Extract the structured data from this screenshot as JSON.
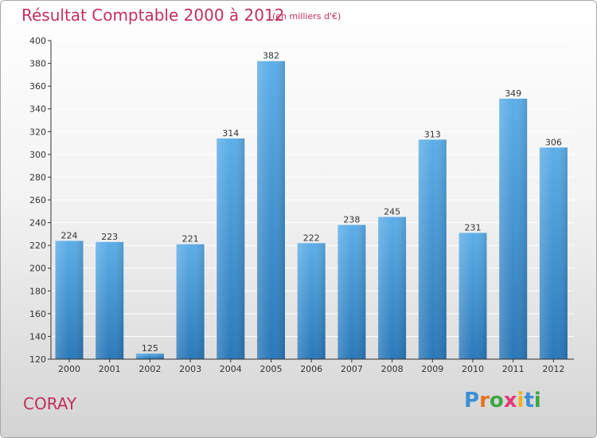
{
  "header": {
    "title": "Résultat Comptable 2000 à 2012",
    "subtitle": "(en milliers d'€)"
  },
  "footer": {
    "commune": "CORAY",
    "logo_letters": [
      "P",
      "r",
      "o",
      "x",
      "i",
      "t",
      "i"
    ],
    "logo_colors": [
      "#3b8fd6",
      "#e8731e",
      "#3aa845",
      "#e23b7a",
      "#f0b21c",
      "#3b8fd6",
      "#3aa845"
    ]
  },
  "colors": {
    "bar_top": "#5daee8",
    "bar_bottom": "#2a78b8",
    "title": "#c0305a",
    "grid": "#ffffff",
    "axis": "#333333"
  },
  "chart_data": {
    "type": "bar",
    "title": "Résultat Comptable 2000 à 2012",
    "subtitle": "(en milliers d'€)",
    "xlabel": "",
    "ylabel": "",
    "categories": [
      "2000",
      "2001",
      "2002",
      "2003",
      "2004",
      "2005",
      "2006",
      "2007",
      "2008",
      "2009",
      "2010",
      "2011",
      "2012"
    ],
    "values": [
      224,
      223,
      125,
      221,
      314,
      382,
      222,
      238,
      245,
      313,
      231,
      349,
      306
    ],
    "ylim": [
      120,
      400
    ],
    "yticks": [
      120,
      140,
      160,
      180,
      200,
      220,
      240,
      260,
      280,
      300,
      320,
      340,
      360,
      380,
      400
    ],
    "grid": true
  }
}
